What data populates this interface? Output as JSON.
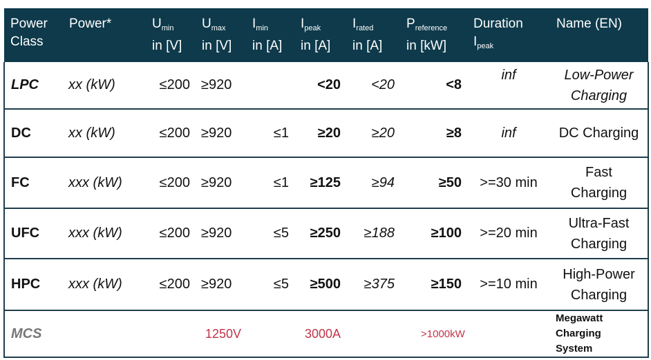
{
  "header": [
    {
      "label": "Power",
      "sub": "",
      "unit": "Class"
    },
    {
      "label": "Power*",
      "sub": "",
      "unit": ""
    },
    {
      "label": "U",
      "sub": "min",
      "unit": "in [V]"
    },
    {
      "label": "U",
      "sub": "max",
      "unit": "in [V]"
    },
    {
      "label": "I",
      "sub": "min",
      "unit": "in [A]"
    },
    {
      "label": "I",
      "sub": "peak",
      "unit": "in [A]"
    },
    {
      "label": "I",
      "sub": "rated",
      "unit": "in [A]"
    },
    {
      "label": "P",
      "sub": "reference",
      "unit": "in [kW]"
    },
    {
      "label": "Duration",
      "sub": "",
      "unit": "I",
      "unit_sub": "peak"
    },
    {
      "label": "Name (EN)",
      "sub": "",
      "unit": ""
    }
  ],
  "rows": [
    {
      "cls": "LPC",
      "power": "xx (kW)",
      "umin": "≤200",
      "umax": "≥920",
      "imin": "",
      "ipeak": "<20",
      "irated": "<20",
      "pref": "<8",
      "duration": "inf",
      "name1": "Low-Power",
      "name2": "Charging"
    },
    {
      "cls": "DC",
      "power": "xx (kW)",
      "umin": "≤200",
      "umax": "≥920",
      "imin": "≤1",
      "ipeak": "≥20",
      "irated": "≥20",
      "pref": "≥8",
      "duration": "inf",
      "name1": "DC Charging",
      "name2": ""
    },
    {
      "cls": "FC",
      "power": "xxx (kW)",
      "umin": "≤200",
      "umax": "≥920",
      "imin": "≤1",
      "ipeak": "≥125",
      "irated": "≥94",
      "pref": "≥50",
      "duration": ">=30 min",
      "name1": "Fast",
      "name2": "Charging"
    },
    {
      "cls": "UFC",
      "power": "xxx (kW)",
      "umin": "≤200",
      "umax": "≥920",
      "imin": "≤5",
      "ipeak": "≥250",
      "irated": "≥188",
      "pref": "≥100",
      "duration": ">=20 min",
      "name1": "Ultra-Fast",
      "name2": "Charging"
    },
    {
      "cls": "HPC",
      "power": "xxx (kW)",
      "umin": "≤200",
      "umax": "≥920",
      "imin": "≤5",
      "ipeak": "≥500",
      "irated": "≥375",
      "pref": "≥150",
      "duration": ">=10 min",
      "name1": "High-Power",
      "name2": "Charging"
    }
  ],
  "mcs": {
    "cls": "MCS",
    "umin": "1250V",
    "ipeak": "3000A",
    "pref": ">1000kW",
    "name1": "Megawatt Charging",
    "name2": "System"
  },
  "colors": {
    "header_bg": "#0e3a4b",
    "highlight_red": "#c0334a"
  }
}
